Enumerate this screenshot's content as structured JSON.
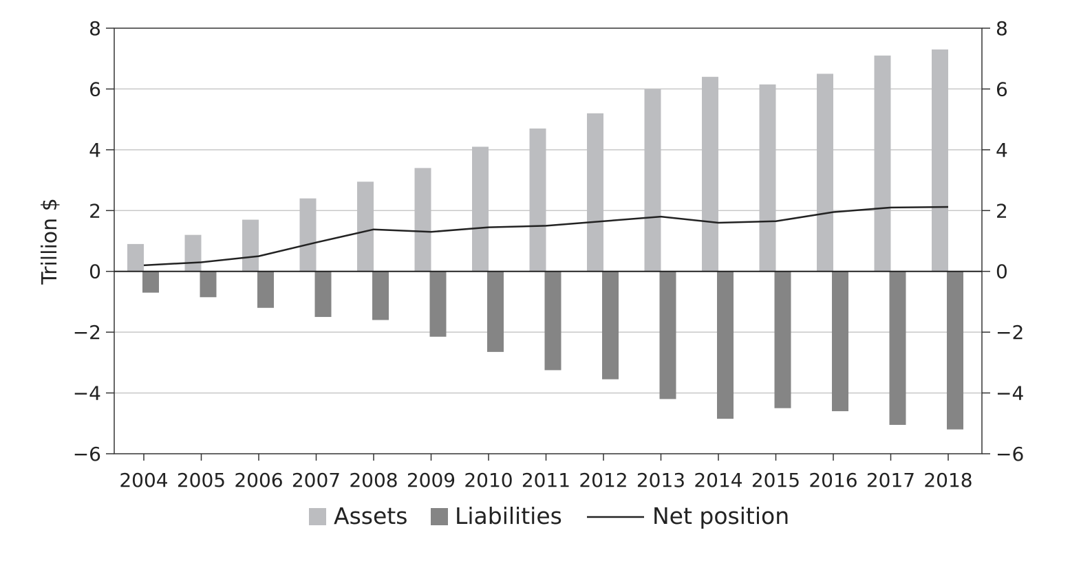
{
  "chart_data": {
    "type": "bar",
    "categories": [
      "2004",
      "2005",
      "2006",
      "2007",
      "2008",
      "2009",
      "2010",
      "2011",
      "2012",
      "2013",
      "2014",
      "2015",
      "2016",
      "2017",
      "2018"
    ],
    "series": [
      {
        "name": "Assets",
        "kind": "bar",
        "color": "#bcbdc0",
        "values": [
          0.9,
          1.2,
          1.7,
          2.4,
          2.95,
          3.4,
          4.1,
          4.7,
          5.2,
          6.0,
          6.4,
          6.15,
          6.5,
          7.1,
          7.3
        ]
      },
      {
        "name": "Liabilities",
        "kind": "bar",
        "color": "#858585",
        "values": [
          -0.7,
          -0.85,
          -1.2,
          -1.5,
          -1.6,
          -2.15,
          -2.65,
          -3.25,
          -3.55,
          -4.2,
          -4.85,
          -4.5,
          -4.6,
          -5.05,
          -5.2
        ]
      },
      {
        "name": "Net position",
        "kind": "line",
        "color": "#222222",
        "values": [
          0.2,
          0.3,
          0.5,
          0.95,
          1.38,
          1.3,
          1.45,
          1.5,
          1.65,
          1.8,
          1.6,
          1.65,
          1.95,
          2.1,
          2.12
        ]
      }
    ],
    "ylabel": "Trillion $",
    "ylim": [
      -6,
      8
    ],
    "yticks": [
      8,
      6,
      4,
      2,
      0,
      -2,
      -4,
      -6
    ],
    "ytick_labels": [
      "8",
      "6",
      "4",
      "2",
      "0",
      "−2",
      "−4",
      "−6"
    ],
    "secondary_yaxis": true,
    "grid": "horizontal",
    "legend_position": "bottom"
  }
}
